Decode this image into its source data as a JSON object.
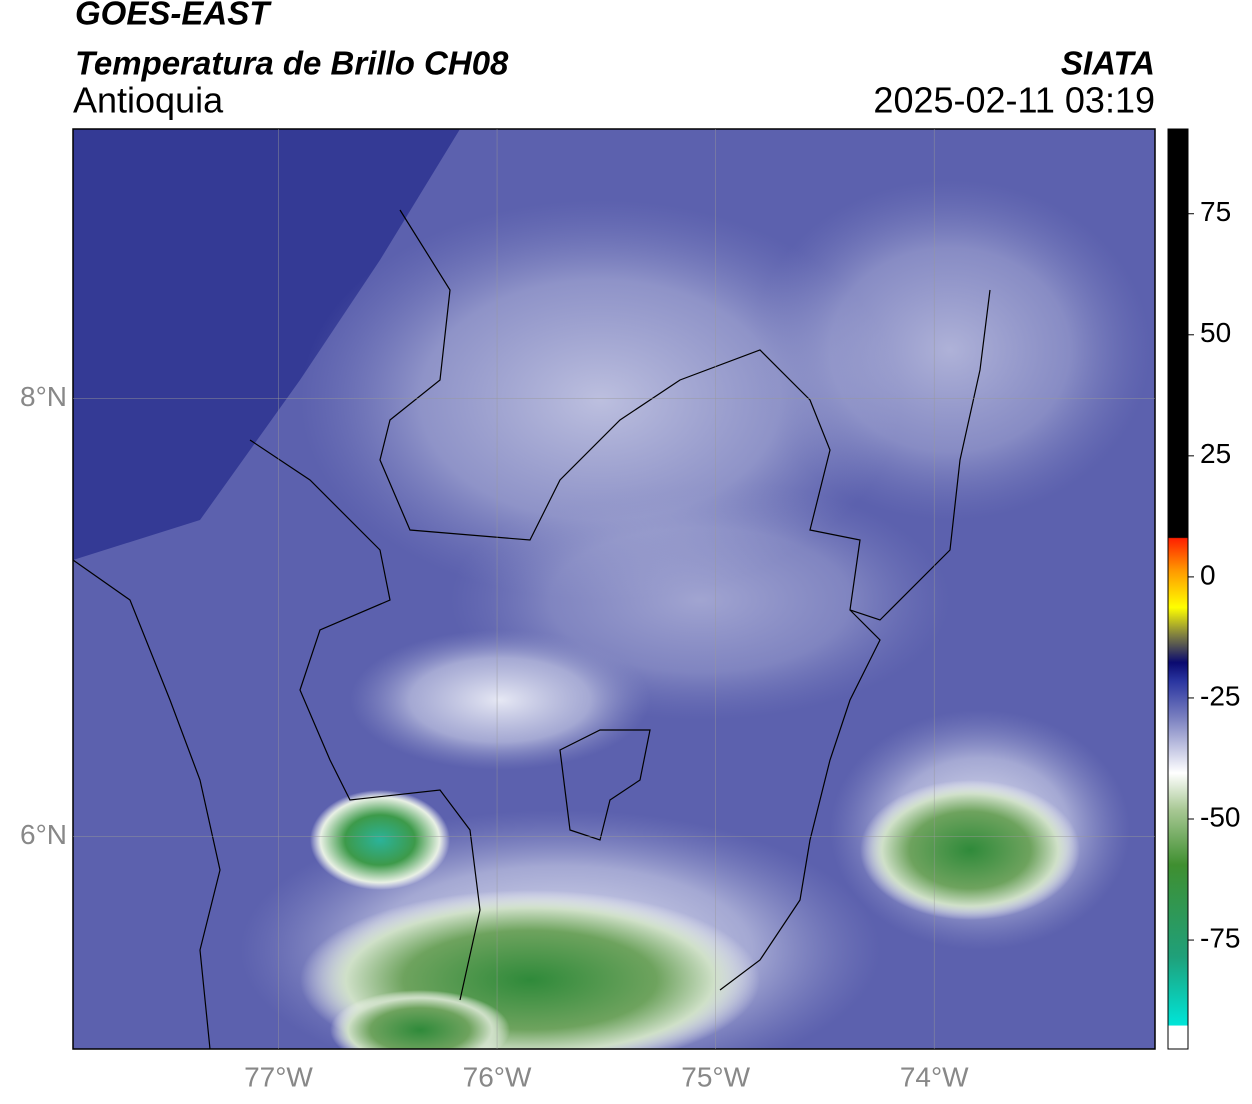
{
  "header": {
    "title": "GOES-EAST",
    "subtitle": "Temperatura de Brillo CH08",
    "region": "Antioquia",
    "source": "SIATA",
    "datetime": "2025-02-11 03:19"
  },
  "map": {
    "lonlim": [
      -77.94,
      -72.99
    ],
    "latlim": [
      5.03,
      9.23
    ],
    "lon_ticks": [
      {
        "value": -77,
        "label": "77°W"
      },
      {
        "value": -76,
        "label": "76°W"
      },
      {
        "value": -75,
        "label": "75°W"
      },
      {
        "value": -74,
        "label": "74°W"
      }
    ],
    "lat_ticks": [
      {
        "value": 8,
        "label": "8°N"
      },
      {
        "value": 6,
        "label": "6°N"
      }
    ]
  },
  "colorbar": {
    "lim": [
      -97.5,
      92.5
    ],
    "ticks": [
      75,
      50,
      25,
      0,
      -25,
      -50,
      -75
    ]
  }
}
